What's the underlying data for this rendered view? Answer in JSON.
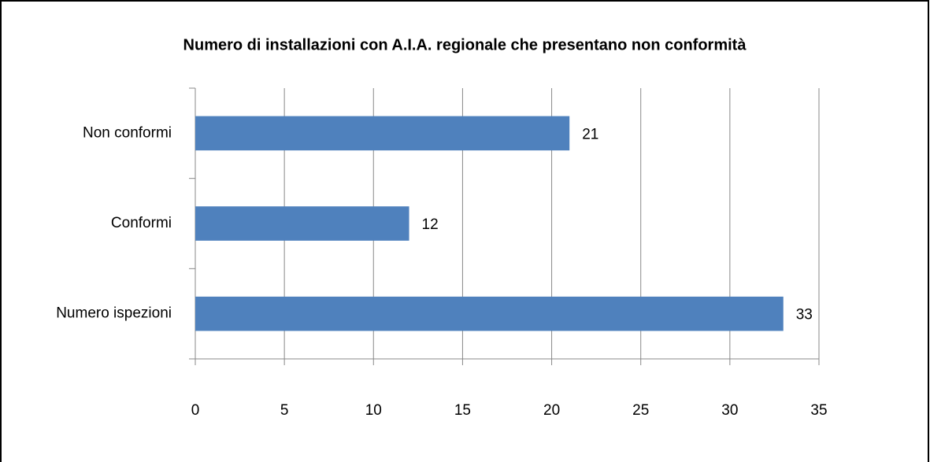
{
  "chart_data": {
    "type": "bar",
    "orientation": "horizontal",
    "title": "Numero di installazioni  con A.I.A. regionale che presentano  non conformità",
    "categories": [
      "Non conformi",
      "Conformi",
      "Numero ispezioni"
    ],
    "values": [
      21,
      12,
      33
    ],
    "color": "#4f81bd",
    "xlim": [
      0,
      35
    ],
    "xticks": [
      0,
      5,
      10,
      15,
      20,
      25,
      30,
      35
    ],
    "grid": true
  }
}
